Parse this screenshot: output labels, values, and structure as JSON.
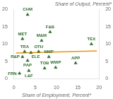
{
  "chart_data": {
    "type": "scatter",
    "xlabel": "Share of Employment, Percent*",
    "ylabel": "Share of Output, Percent*",
    "series": [
      {
        "type": "scatter",
        "color": "#2e6b2e",
        "marker": "triangle",
        "labels": [
          "CHM",
          "MET",
          "F&B",
          "M&M",
          "TEX",
          "TRA",
          "ELE",
          "OTH",
          "NMP",
          "R&P",
          "PAP",
          "APP",
          "TOB",
          "WWP",
          "L&F",
          "FRN"
        ],
        "x": [
          3.2,
          2.0,
          8.5,
          6.5,
          18.2,
          2.5,
          4.0,
          5.8,
          8.2,
          2.0,
          3.2,
          14.5,
          7.2,
          9.8,
          3.5,
          1.3
        ],
        "values": [
          18.5,
          11.5,
          13.5,
          11.0,
          10.0,
          7.8,
          7.5,
          7.8,
          6.3,
          6.3,
          5.2,
          4.5,
          3.0,
          3.2,
          2.3,
          1.5
        ]
      },
      {
        "type": "line",
        "color": "#e8960a",
        "x": [
          0.5,
          19.5
        ],
        "values": [
          7.4,
          8.0
        ]
      }
    ],
    "xlim": [
      0,
      20
    ],
    "ylim": [
      0,
      20
    ],
    "xticks": [
      0,
      5,
      10,
      15,
      20
    ],
    "yticks": [
      0,
      5,
      10,
      15,
      20
    ],
    "y2lim": [
      0,
      20
    ],
    "y2ticks": [
      0,
      5,
      10,
      15,
      20
    ],
    "grid": false
  }
}
